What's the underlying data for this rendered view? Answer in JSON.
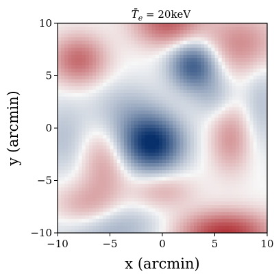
{
  "chart_data": {
    "type": "heatmap",
    "title": "T̄e = 20keV",
    "title_parts": {
      "symbol": "T̄",
      "subscript": "e",
      "rest": " = 20keV"
    },
    "xlabel": "x (arcmin)",
    "ylabel": "y (arcmin)",
    "xlim": [
      -10,
      10
    ],
    "ylim": [
      -10,
      10
    ],
    "xticks": [
      -10,
      -5,
      0,
      5,
      10
    ],
    "yticks": [
      10,
      5,
      0,
      -5,
      -10
    ],
    "xtick_labels": [
      "−10",
      "−5",
      "0",
      "5",
      "10"
    ],
    "ytick_labels": [
      "10",
      "5",
      "0",
      "−5",
      "−10"
    ],
    "colormap": "RdBu_r",
    "colors": {
      "negative": "#08306b",
      "zero": "#f7f7f7",
      "positive": "#a50f15"
    },
    "grid": false,
    "features": [
      {
        "x": -1.0,
        "y": -1.5,
        "amp": -1.0,
        "sx": 2.0,
        "sy": 1.8
      },
      {
        "x": 3.0,
        "y": 6.0,
        "amp": -0.75,
        "sx": 1.6,
        "sy": 1.6
      },
      {
        "x": -3.5,
        "y": 1.5,
        "amp": -0.25,
        "sx": 2.5,
        "sy": 2.0
      },
      {
        "x": -8.0,
        "y": 6.5,
        "amp": 0.55,
        "sx": 1.8,
        "sy": 1.6
      },
      {
        "x": 0.5,
        "y": 10.0,
        "amp": 0.6,
        "sx": 2.2,
        "sy": 1.5
      },
      {
        "x": 7.5,
        "y": 8.0,
        "amp": 0.4,
        "sx": 2.5,
        "sy": 2.0
      },
      {
        "x": 6.0,
        "y": -10.0,
        "amp": 0.8,
        "sx": 3.0,
        "sy": 1.4
      },
      {
        "x": 6.5,
        "y": -1.0,
        "amp": 0.35,
        "sx": 1.3,
        "sy": 2.2
      },
      {
        "x": -5.5,
        "y": -3.5,
        "amp": 0.3,
        "sx": 1.5,
        "sy": 2.5
      },
      {
        "x": -7.5,
        "y": -7.5,
        "amp": 0.3,
        "sx": 2.0,
        "sy": 1.5
      },
      {
        "x": 0.0,
        "y": -6.0,
        "amp": 0.25,
        "sx": 2.0,
        "sy": 1.2
      },
      {
        "x": -5.0,
        "y": -9.5,
        "amp": -0.3,
        "sx": 3.5,
        "sy": 1.5
      },
      {
        "x": 9.5,
        "y": 2.5,
        "amp": -0.2,
        "sx": 1.2,
        "sy": 3.0
      },
      {
        "x": -9.5,
        "y": -1.0,
        "amp": -0.2,
        "sx": 1.5,
        "sy": 2.5
      },
      {
        "x": 5.0,
        "y": 3.0,
        "amp": -0.2,
        "sx": 1.5,
        "sy": 1.5
      }
    ]
  }
}
